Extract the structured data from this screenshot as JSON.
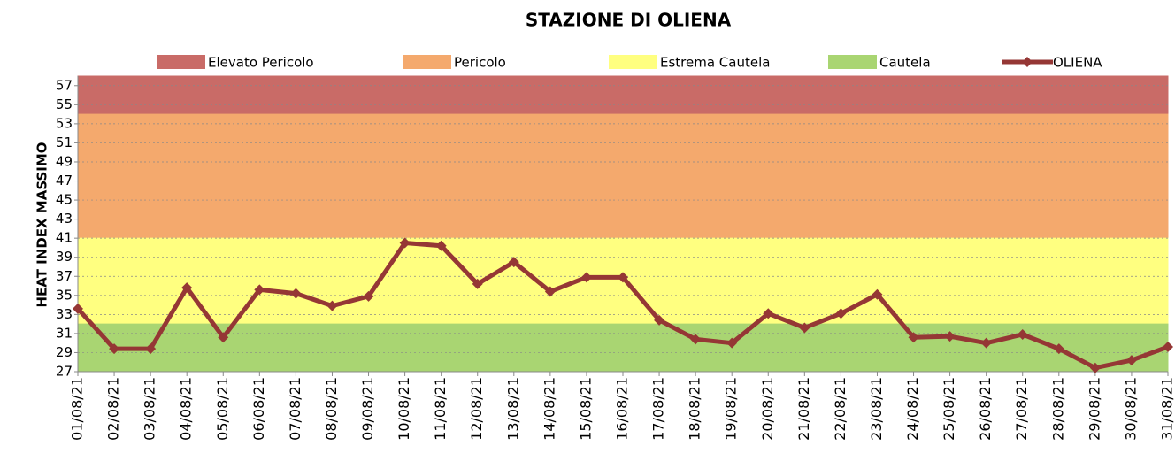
{
  "chart_data": {
    "type": "line",
    "title": "STAZIONE DI OLIENA",
    "y_label": "HEAT INDEX MASSIMO",
    "bands": [
      {
        "name": "Elevato Pericolo",
        "color": "#c96b67",
        "from": 54,
        "to": 58
      },
      {
        "name": "Pericolo",
        "color": "#f4a96d",
        "from": 41,
        "to": 54
      },
      {
        "name": "Estrema Cautela",
        "color": "#ffff80",
        "from": 32,
        "to": 41
      },
      {
        "name": "Cautela",
        "color": "#a9d572",
        "from": 27,
        "to": 32
      }
    ],
    "categories": [
      "01/08/21",
      "02/08/21",
      "03/08/21",
      "04/08/21",
      "05/08/21",
      "06/08/21",
      "07/08/21",
      "08/08/21",
      "09/08/21",
      "10/08/21",
      "11/08/21",
      "12/08/21",
      "13/08/21",
      "14/08/21",
      "15/08/21",
      "16/08/21",
      "17/08/21",
      "18/08/21",
      "19/08/21",
      "20/08/21",
      "21/08/21",
      "22/08/21",
      "23/08/21",
      "24/08/21",
      "25/08/21",
      "26/08/21",
      "27/08/21",
      "28/08/21",
      "29/08/21",
      "30/08/21",
      "31/08/21"
    ],
    "series": [
      {
        "name": "OLIENA",
        "color": "#953735",
        "values": [
          33.6,
          29.4,
          29.4,
          35.8,
          30.6,
          35.6,
          35.2,
          33.9,
          34.9,
          40.5,
          40.2,
          36.2,
          38.5,
          35.4,
          36.9,
          36.9,
          32.4,
          30.4,
          30.0,
          33.1,
          31.6,
          33.1,
          35.1,
          30.6,
          30.7,
          30.0,
          30.9,
          29.4,
          27.4,
          28.2,
          29.6
        ]
      }
    ],
    "ylim": [
      27,
      58
    ],
    "yticks": [
      27,
      29,
      31,
      33,
      35,
      37,
      39,
      41,
      43,
      45,
      47,
      49,
      51,
      53,
      55,
      57
    ],
    "grid": true
  }
}
